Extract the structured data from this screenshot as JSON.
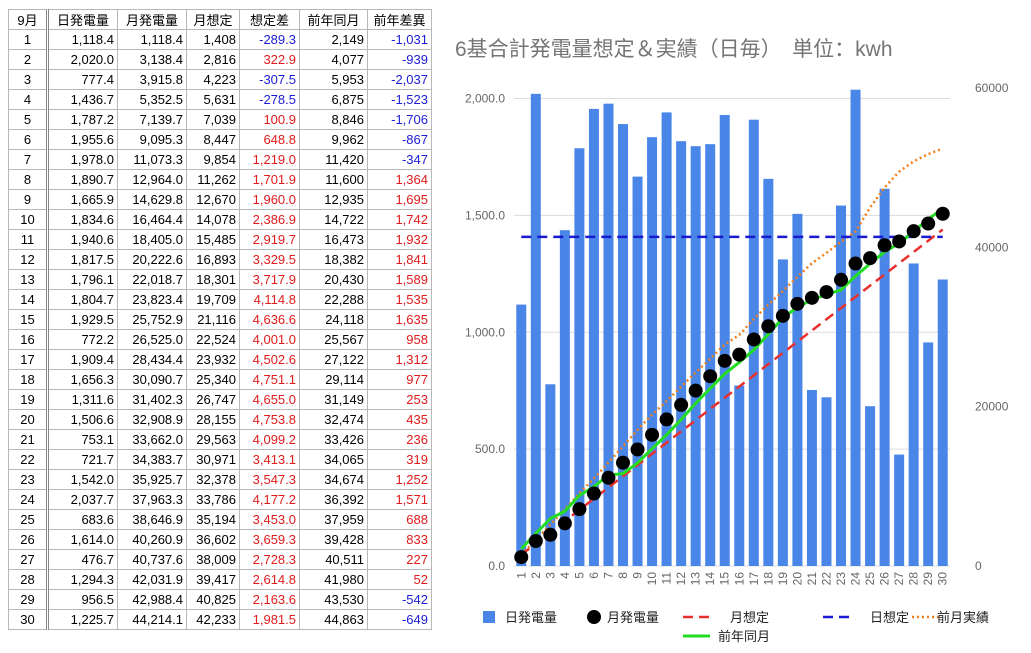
{
  "table": {
    "header": [
      "9月",
      "日発電量",
      "月発電量",
      "月想定",
      "想定差",
      "前年同月",
      "前年差異"
    ],
    "rows": [
      [
        "1",
        "1,118.4",
        "1,118.4",
        "1,408",
        "-289.3",
        "2,149",
        "-1,031"
      ],
      [
        "2",
        "2,020.0",
        "3,138.4",
        "2,816",
        "322.9",
        "4,077",
        "-939"
      ],
      [
        "3",
        "777.4",
        "3,915.8",
        "4,223",
        "-307.5",
        "5,953",
        "-2,037"
      ],
      [
        "4",
        "1,436.7",
        "5,352.5",
        "5,631",
        "-278.5",
        "6,875",
        "-1,523"
      ],
      [
        "5",
        "1,787.2",
        "7,139.7",
        "7,039",
        "100.9",
        "8,846",
        "-1,706"
      ],
      [
        "6",
        "1,955.6",
        "9,095.3",
        "8,447",
        "648.8",
        "9,962",
        "-867"
      ],
      [
        "7",
        "1,978.0",
        "11,073.3",
        "9,854",
        "1,219.0",
        "11,420",
        "-347"
      ],
      [
        "8",
        "1,890.7",
        "12,964.0",
        "11,262",
        "1,701.9",
        "11,600",
        "1,364"
      ],
      [
        "9",
        "1,665.9",
        "14,629.8",
        "12,670",
        "1,960.0",
        "12,935",
        "1,695"
      ],
      [
        "10",
        "1,834.6",
        "16,464.4",
        "14,078",
        "2,386.9",
        "14,722",
        "1,742"
      ],
      [
        "11",
        "1,940.6",
        "18,405.0",
        "15,485",
        "2,919.7",
        "16,473",
        "1,932"
      ],
      [
        "12",
        "1,817.5",
        "20,222.6",
        "16,893",
        "3,329.5",
        "18,382",
        "1,841"
      ],
      [
        "13",
        "1,796.1",
        "22,018.7",
        "18,301",
        "3,717.9",
        "20,430",
        "1,589"
      ],
      [
        "14",
        "1,804.7",
        "23,823.4",
        "19,709",
        "4,114.8",
        "22,288",
        "1,535"
      ],
      [
        "15",
        "1,929.5",
        "25,752.9",
        "21,116",
        "4,636.6",
        "24,118",
        "1,635"
      ],
      [
        "16",
        "772.2",
        "26,525.0",
        "22,524",
        "4,001.0",
        "25,567",
        "958"
      ],
      [
        "17",
        "1,909.4",
        "28,434.4",
        "23,932",
        "4,502.6",
        "27,122",
        "1,312"
      ],
      [
        "18",
        "1,656.3",
        "30,090.7",
        "25,340",
        "4,751.1",
        "29,114",
        "977"
      ],
      [
        "19",
        "1,311.6",
        "31,402.3",
        "26,747",
        "4,655.0",
        "31,149",
        "253"
      ],
      [
        "20",
        "1,506.6",
        "32,908.9",
        "28,155",
        "4,753.8",
        "32,474",
        "435"
      ],
      [
        "21",
        "753.1",
        "33,662.0",
        "29,563",
        "4,099.2",
        "33,426",
        "236"
      ],
      [
        "22",
        "721.7",
        "34,383.7",
        "30,971",
        "3,413.1",
        "34,065",
        "319"
      ],
      [
        "23",
        "1,542.0",
        "35,925.7",
        "32,378",
        "3,547.3",
        "34,674",
        "1,252"
      ],
      [
        "24",
        "2,037.7",
        "37,963.3",
        "33,786",
        "4,177.2",
        "36,392",
        "1,571"
      ],
      [
        "25",
        "683.6",
        "38,646.9",
        "35,194",
        "3,453.0",
        "37,959",
        "688"
      ],
      [
        "26",
        "1,614.0",
        "40,260.9",
        "36,602",
        "3,659.3",
        "39,428",
        "833"
      ],
      [
        "27",
        "476.7",
        "40,737.6",
        "38,009",
        "2,728.3",
        "40,511",
        "227"
      ],
      [
        "28",
        "1,294.3",
        "42,031.9",
        "39,417",
        "2,614.8",
        "41,980",
        "52"
      ],
      [
        "29",
        "956.5",
        "42,988.4",
        "40,825",
        "2,163.6",
        "43,530",
        "-542"
      ],
      [
        "30",
        "1,225.7",
        "44,214.1",
        "42,233",
        "1,981.5",
        "44,863",
        "-649"
      ]
    ]
  },
  "chart_data": {
    "type": "combo",
    "title": "6基合計発電量想定＆実績（日毎）　単位：kwh",
    "categories": [
      "1",
      "2",
      "3",
      "4",
      "5",
      "6",
      "7",
      "8",
      "9",
      "10",
      "11",
      "12",
      "13",
      "14",
      "15",
      "16",
      "17",
      "18",
      "19",
      "20",
      "21",
      "22",
      "23",
      "24",
      "25",
      "26",
      "27",
      "28",
      "29",
      "30"
    ],
    "ylim": [
      0,
      2045
    ],
    "yticks": [
      {
        "value": 0,
        "label": "0.0"
      },
      {
        "value": 500,
        "label": "500.0"
      },
      {
        "value": 1000,
        "label": "1,000.0"
      },
      {
        "value": 1500,
        "label": "1,500.0"
      },
      {
        "value": 2000,
        "label": "2,000.0"
      }
    ],
    "y2lim": [
      0,
      60000
    ],
    "y2ticks": [
      0,
      20000,
      40000,
      60000
    ],
    "grid": true,
    "legend": "bottom",
    "series": [
      {
        "name": "日発電量",
        "type": "bar",
        "color": "#4a86e8",
        "values": [
          1118.4,
          2020.0,
          777.4,
          1436.7,
          1787.2,
          1955.6,
          1978.0,
          1890.7,
          1665.9,
          1834.6,
          1940.6,
          1817.5,
          1796.1,
          1804.7,
          1929.5,
          772.2,
          1909.4,
          1656.3,
          1311.6,
          1506.6,
          753.1,
          721.7,
          1542.0,
          2037.7,
          683.6,
          1614.0,
          476.7,
          1294.3,
          956.5,
          1225.7
        ]
      },
      {
        "name": "月発電量",
        "type": "dots",
        "axis": "y2",
        "color": "#000000",
        "values": [
          1118.4,
          3138.4,
          3915.8,
          5352.5,
          7139.7,
          9095.3,
          11073.3,
          12964.0,
          14629.8,
          16464.4,
          18405.0,
          20222.6,
          22018.7,
          23823.4,
          25752.9,
          26525.0,
          28434.4,
          30090.7,
          31402.3,
          32908.9,
          33662.0,
          34383.7,
          35925.7,
          37963.3,
          38646.9,
          40260.9,
          40737.6,
          42031.9,
          42988.4,
          44214.1
        ]
      },
      {
        "name": "月想定",
        "type": "dashed",
        "axis": "y2",
        "color": "#e8312f",
        "values": [
          1408,
          2816,
          4223,
          5631,
          7039,
          8447,
          9854,
          11262,
          12670,
          14078,
          15485,
          16893,
          18301,
          19709,
          21116,
          22524,
          23932,
          25340,
          26747,
          28155,
          29563,
          30971,
          32378,
          33786,
          35194,
          36602,
          38009,
          39417,
          40825,
          42233
        ]
      },
      {
        "name": "日想定",
        "type": "dashed",
        "color": "#1a1ad0",
        "values": [
          1408,
          1408,
          1408,
          1408,
          1408,
          1408,
          1408,
          1408,
          1408,
          1408,
          1408,
          1408,
          1408,
          1408,
          1408,
          1408,
          1408,
          1408,
          1408,
          1408,
          1408,
          1408,
          1408,
          1408,
          1408,
          1408,
          1408,
          1408,
          1408,
          1408
        ]
      },
      {
        "name": "前月実績",
        "type": "dotted",
        "axis": "y2",
        "color": "#f07f1a",
        "values": [
          1400,
          3300,
          5200,
          7100,
          9100,
          11000,
          13000,
          15000,
          17100,
          19000,
          20700,
          22500,
          24300,
          26000,
          27800,
          29000,
          31000,
          32800,
          34500,
          36300,
          38000,
          39300,
          40700,
          42000,
          45000,
          47500,
          49500,
          50800,
          51700,
          52400
        ]
      },
      {
        "name": "前年同月",
        "type": "line",
        "axis": "y2",
        "color": "#22dd22",
        "values": [
          2149,
          4077,
          5953,
          6875,
          8846,
          9962,
          11420,
          11600,
          12935,
          14722,
          16473,
          18382,
          20430,
          22288,
          24118,
          25567,
          27122,
          29114,
          31149,
          32474,
          33426,
          34065,
          34674,
          36392,
          37959,
          39428,
          40511,
          41980,
          43530,
          44863
        ]
      }
    ]
  }
}
